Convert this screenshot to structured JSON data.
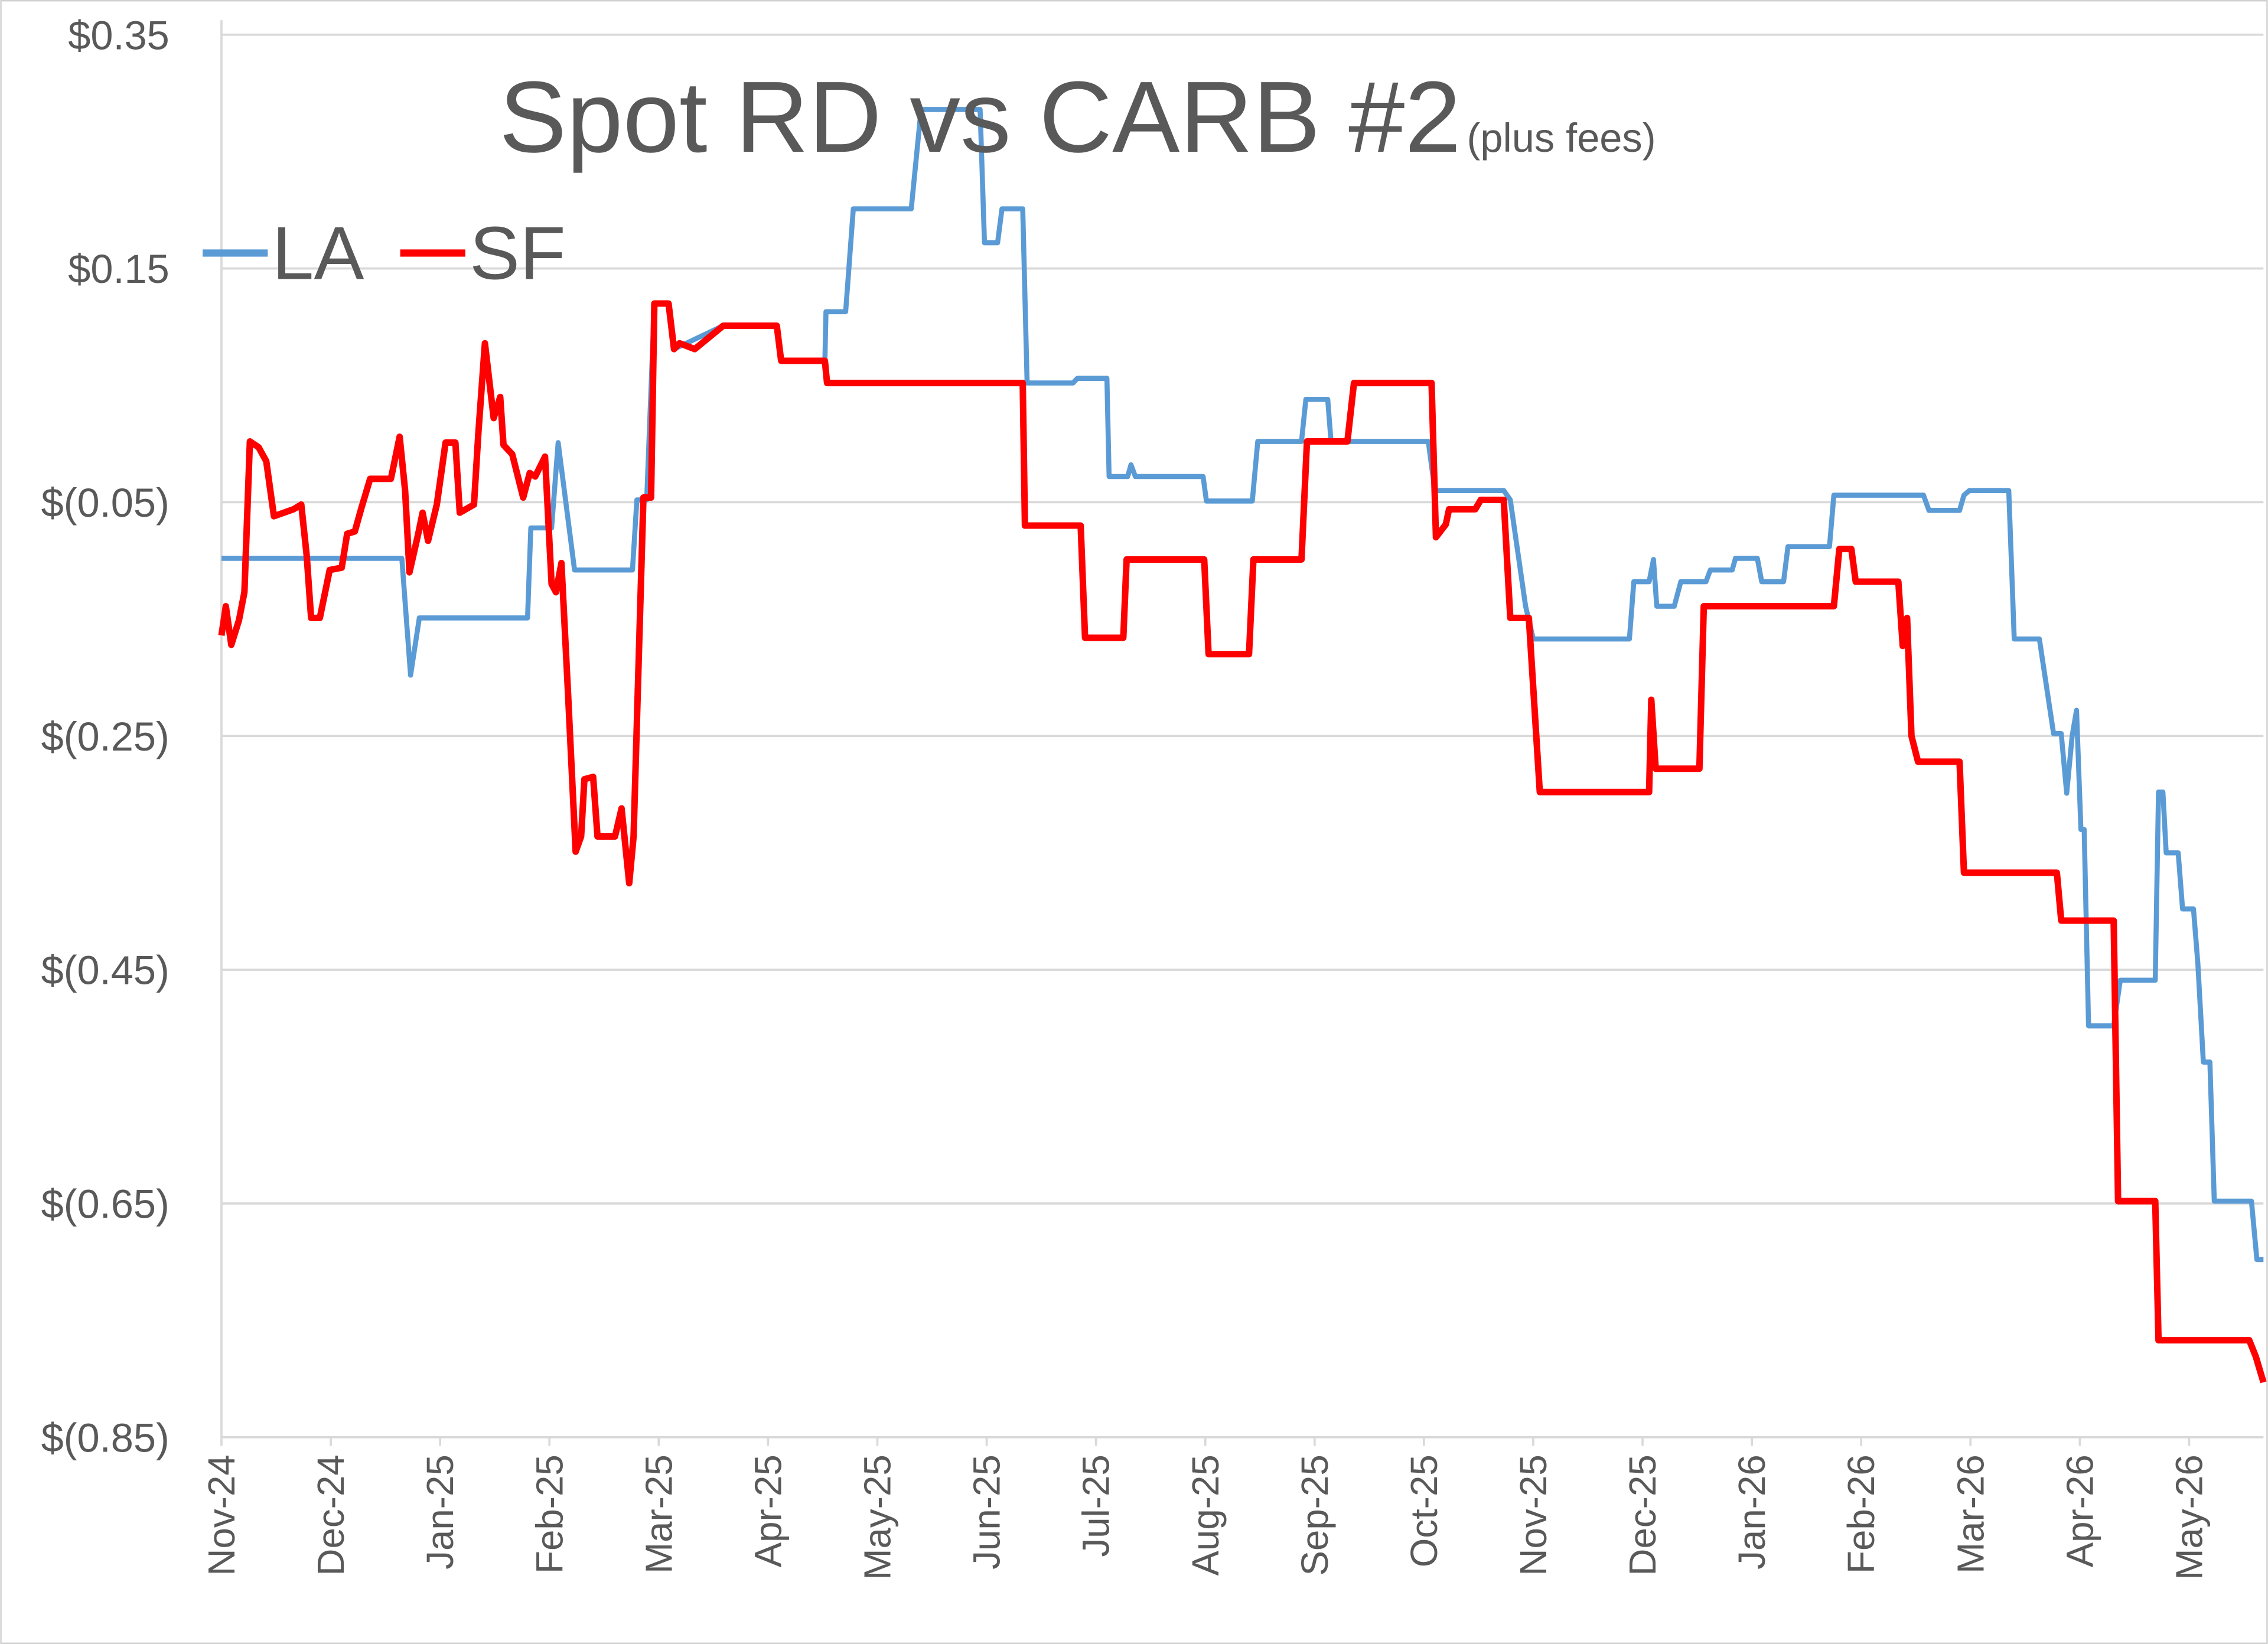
{
  "chart_data": {
    "type": "line",
    "title": "Spot RD vs CARB #2",
    "subtitle": "(plus fees)",
    "legend": "top-left",
    "grid": true,
    "ylim": [
      -0.85,
      0.35
    ],
    "yticks": [
      {
        "value": 0.35,
        "label": "$0.35"
      },
      {
        "value": 0.15,
        "label": "$0.15"
      },
      {
        "value": -0.05,
        "label": "$(0.05)"
      },
      {
        "value": -0.25,
        "label": "$(0.25)"
      },
      {
        "value": -0.45,
        "label": "$(0.45)"
      },
      {
        "value": -0.65,
        "label": "$(0.65)"
      },
      {
        "value": -0.85,
        "label": "$(0.85)"
      }
    ],
    "xlim": [
      0,
      18.68
    ],
    "xticks": [
      {
        "value": 0,
        "label": "Nov-24"
      },
      {
        "value": 1,
        "label": "Dec-24"
      },
      {
        "value": 2,
        "label": "Jan-25"
      },
      {
        "value": 3,
        "label": "Feb-25"
      },
      {
        "value": 4,
        "label": "Mar-25"
      },
      {
        "value": 5,
        "label": "Apr-25"
      },
      {
        "value": 6,
        "label": "May-25"
      },
      {
        "value": 7,
        "label": "Jun-25"
      },
      {
        "value": 8,
        "label": "Jul-25"
      },
      {
        "value": 9,
        "label": "Aug-25"
      },
      {
        "value": 10,
        "label": "Sep-25"
      },
      {
        "value": 11,
        "label": "Oct-25"
      },
      {
        "value": 12,
        "label": "Nov-25"
      },
      {
        "value": 13,
        "label": "Dec-25"
      },
      {
        "value": 14,
        "label": "Jan-26"
      },
      {
        "value": 15,
        "label": "Feb-26"
      },
      {
        "value": 16,
        "label": "Mar-26"
      },
      {
        "value": 17,
        "label": "Apr-26"
      },
      {
        "value": 18,
        "label": "May-26"
      }
    ],
    "series": [
      {
        "name": "LA",
        "color": "#5b9bd5",
        "x": [
          0,
          1.65,
          1.73,
          1.81,
          2.8,
          2.83,
          3.02,
          3.08,
          3.23,
          3.76,
          3.8,
          3.89,
          3.96,
          4.09,
          4.14,
          4.59,
          5.08,
          5.12,
          5.52,
          5.53,
          5.71,
          5.78,
          6.31,
          6.4,
          6.94,
          6.98,
          7.1,
          7.14,
          7.33,
          7.37,
          7.79,
          7.83,
          8.1,
          8.12,
          8.29,
          8.32,
          8.36,
          8.98,
          9.01,
          9.43,
          9.48,
          9.88,
          9.92,
          10.12,
          10.15,
          11.04,
          11.1,
          11.73,
          11.79,
          11.93,
          12.0,
          12.88,
          12.92,
          13.06,
          13.1,
          13.13,
          13.29,
          13.35,
          13.58,
          13.62,
          13.82,
          13.85,
          14.05,
          14.09,
          14.29,
          14.33,
          14.71,
          14.75,
          15.57,
          15.62,
          15.9,
          15.94,
          15.99,
          16.35,
          16.4,
          16.63,
          16.76,
          16.83,
          16.88,
          16.93,
          16.97,
          17.01,
          17.04,
          17.08,
          17.31,
          17.37,
          17.69,
          17.72,
          17.76,
          17.79,
          17.9,
          17.94,
          18.04,
          18.08,
          18.13,
          18.19,
          18.23,
          18.57,
          18.62,
          18.68
        ],
        "values": [
          -0.098,
          -0.098,
          -0.198,
          -0.149,
          -0.149,
          -0.072,
          -0.072,
          0.001,
          -0.108,
          -0.108,
          -0.048,
          -0.048,
          0.12,
          0.12,
          0.081,
          0.101,
          0.101,
          0.071,
          0.071,
          0.113,
          0.113,
          0.201,
          0.201,
          0.286,
          0.286,
          0.172,
          0.172,
          0.201,
          0.201,
          0.052,
          0.052,
          0.056,
          0.056,
          -0.028,
          -0.028,
          -0.018,
          -0.028,
          -0.028,
          -0.049,
          -0.049,
          0.002,
          0.002,
          0.038,
          0.038,
          0.002,
          0.002,
          -0.04,
          -0.04,
          -0.048,
          -0.139,
          -0.167,
          -0.167,
          -0.118,
          -0.118,
          -0.099,
          -0.139,
          -0.139,
          -0.118,
          -0.118,
          -0.108,
          -0.108,
          -0.098,
          -0.098,
          -0.118,
          -0.118,
          -0.088,
          -0.088,
          -0.044,
          -0.044,
          -0.057,
          -0.057,
          -0.044,
          -0.04,
          -0.04,
          -0.167,
          -0.167,
          -0.248,
          -0.248,
          -0.299,
          -0.25,
          -0.228,
          -0.33,
          -0.33,
          -0.498,
          -0.498,
          -0.459,
          -0.459,
          -0.298,
          -0.298,
          -0.35,
          -0.35,
          -0.398,
          -0.398,
          -0.445,
          -0.529,
          -0.529,
          -0.648,
          -0.648,
          -0.698,
          -0.698
        ]
      },
      {
        "name": "SF",
        "color": "#ff0000",
        "x": [
          0,
          0.04,
          0.09,
          0.16,
          0.21,
          0.26,
          0.34,
          0.41,
          0.48,
          0.66,
          0.73,
          0.78,
          0.82,
          0.9,
          0.99,
          1.1,
          1.15,
          1.22,
          1.28,
          1.36,
          1.55,
          1.63,
          1.68,
          1.72,
          1.8,
          1.84,
          1.89,
          1.97,
          2.05,
          2.14,
          2.18,
          2.31,
          2.35,
          2.41,
          2.49,
          2.55,
          2.58,
          2.66,
          2.76,
          2.82,
          2.87,
          2.96,
          3.02,
          3.06,
          3.11,
          3.17,
          3.24,
          3.29,
          3.32,
          3.4,
          3.44,
          3.6,
          3.66,
          3.73,
          3.77,
          3.86,
          3.93,
          3.96,
          4.09,
          4.14,
          4.19,
          4.33,
          4.59,
          5.08,
          5.12,
          5.52,
          5.54,
          7.33,
          7.35,
          7.86,
          7.9,
          8.25,
          8.28,
          8.99,
          9.03,
          9.4,
          9.44,
          9.88,
          9.93,
          10.3,
          10.36,
          11.07,
          11.11,
          11.2,
          11.23,
          11.47,
          11.52,
          11.73,
          11.79,
          11.96,
          12.06,
          13.06,
          13.08,
          13.12,
          13.52,
          13.56,
          14.75,
          14.8,
          14.91,
          14.95,
          15.34,
          15.38,
          15.42,
          15.46,
          15.52,
          15.9,
          15.94,
          16.79,
          16.83,
          17.31,
          17.35,
          17.69,
          17.72,
          18.55,
          18.61,
          18.68
        ],
        "values": [
          -0.164,
          -0.139,
          -0.172,
          -0.151,
          -0.127,
          0.002,
          -0.003,
          -0.015,
          -0.062,
          -0.056,
          -0.052,
          -0.096,
          -0.149,
          -0.149,
          -0.108,
          -0.106,
          -0.077,
          -0.075,
          -0.055,
          -0.03,
          -0.03,
          0.006,
          -0.04,
          -0.11,
          -0.077,
          -0.059,
          -0.083,
          -0.052,
          0.001,
          0.001,
          -0.059,
          -0.052,
          0.009,
          0.086,
          0.022,
          0.04,
          -0.001,
          -0.009,
          -0.046,
          -0.025,
          -0.028,
          -0.011,
          -0.12,
          -0.127,
          -0.102,
          -0.213,
          -0.349,
          -0.336,
          -0.287,
          -0.285,
          -0.336,
          -0.336,
          -0.312,
          -0.376,
          -0.336,
          -0.046,
          -0.046,
          0.12,
          0.12,
          0.081,
          0.086,
          0.081,
          0.101,
          0.101,
          0.071,
          0.071,
          0.052,
          0.052,
          -0.07,
          -0.07,
          -0.166,
          -0.166,
          -0.099,
          -0.099,
          -0.18,
          -0.18,
          -0.099,
          -0.099,
          0.002,
          0.002,
          0.052,
          0.052,
          -0.08,
          -0.069,
          -0.056,
          -0.056,
          -0.048,
          -0.048,
          -0.149,
          -0.149,
          -0.298,
          -0.298,
          -0.219,
          -0.278,
          -0.278,
          -0.139,
          -0.139,
          -0.09,
          -0.09,
          -0.118,
          -0.118,
          -0.173,
          -0.149,
          -0.25,
          -0.272,
          -0.272,
          -0.367,
          -0.367,
          -0.408,
          -0.408,
          -0.648,
          -0.648,
          -0.767,
          -0.767,
          -0.781,
          -0.803
        ]
      }
    ]
  }
}
